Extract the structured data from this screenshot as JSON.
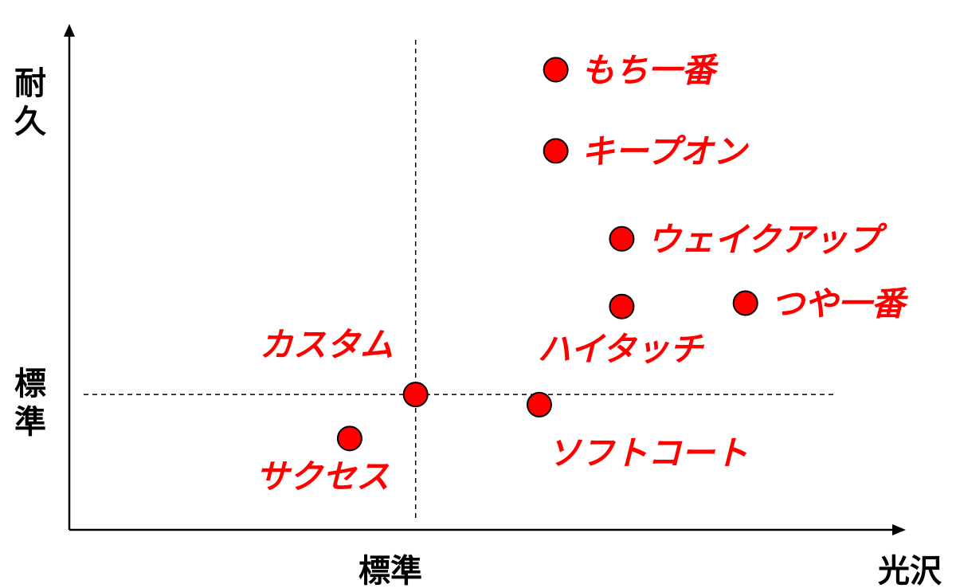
{
  "chart_data": {
    "type": "scatter",
    "title": "",
    "xlabel": "光沢",
    "ylabel": "耐久",
    "x_reference_label": "標準",
    "y_reference_label": "標準",
    "x_reference": 0,
    "y_reference": 0,
    "xlim": [
      -4.2,
      5.8
    ],
    "ylim": [
      -2.0,
      5.3
    ],
    "grid": false,
    "legend": "none",
    "point_color": "#ff0000",
    "points": [
      {
        "name": "もち一番",
        "x": 1.7,
        "y": 4.8
      },
      {
        "name": "キープオン",
        "x": 1.7,
        "y": 3.6
      },
      {
        "name": "ウェイクアップ",
        "x": 2.5,
        "y": 2.3
      },
      {
        "name": "ハイタッチ",
        "x": 2.5,
        "y": 1.3
      },
      {
        "name": "つや一番",
        "x": 4.0,
        "y": 1.35
      },
      {
        "name": "カスタム",
        "x": 0.0,
        "y": 0.0
      },
      {
        "name": "ソフトコート",
        "x": 1.5,
        "y": -0.15
      },
      {
        "name": "サクセス",
        "x": -0.8,
        "y": -0.65
      }
    ]
  }
}
